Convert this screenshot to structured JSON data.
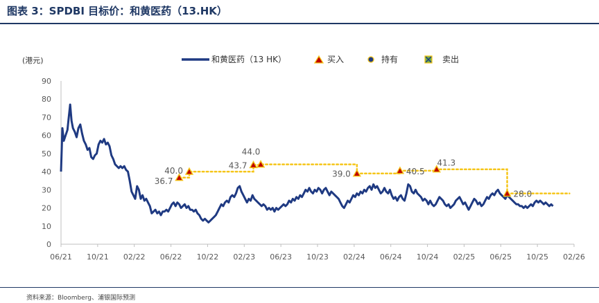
{
  "figure": {
    "title": "图表 3：SPDBI 目标价：和黄医药（13.HK）",
    "source": "资料来源：Bloomberg、浦银国际预测"
  },
  "colors": {
    "price_line": "#1f3a82",
    "target_line": "#f5c518",
    "buy_marker_fill": "#c00000",
    "buy_marker_border": "#f5c518",
    "hold_marker_fill": "#1f3a82",
    "sell_marker_fill": "#70ad47",
    "axis_text": "#595959",
    "title": "#1f3864"
  },
  "chart_data": {
    "type": "line",
    "title": "",
    "unit_label": "(港元)",
    "xlabel": "",
    "ylabel": "(港元)",
    "ylim": [
      0,
      90
    ],
    "yticks": [
      0,
      10,
      20,
      30,
      40,
      50,
      60,
      70,
      80,
      90
    ],
    "xlim": [
      0,
      56
    ],
    "xticks": [
      {
        "m": 0,
        "label": "06/21"
      },
      {
        "m": 4,
        "label": "10/21"
      },
      {
        "m": 8,
        "label": "02/22"
      },
      {
        "m": 12,
        "label": "06/22"
      },
      {
        "m": 16,
        "label": "10/22"
      },
      {
        "m": 20,
        "label": "02/23"
      },
      {
        "m": 24,
        "label": "06/23"
      },
      {
        "m": 28,
        "label": "10/23"
      },
      {
        "m": 32,
        "label": "02/24"
      },
      {
        "m": 36,
        "label": "06/24"
      },
      {
        "m": 40,
        "label": "10/24"
      },
      {
        "m": 44,
        "label": "02/25"
      },
      {
        "m": 48,
        "label": "06/25"
      },
      {
        "m": 52,
        "label": "10/25"
      },
      {
        "m": 56,
        "label": "02/26"
      }
    ],
    "legend": {
      "position": "top",
      "entries": [
        {
          "key": "price",
          "label": "和黄医药（13 HK）"
        },
        {
          "key": "buy",
          "label": "买入"
        },
        {
          "key": "hold",
          "label": "持有"
        },
        {
          "key": "sell",
          "label": "卖出"
        }
      ]
    },
    "price_series": {
      "name": "和黄医药（13 HK）",
      "points": [
        [
          0,
          40
        ],
        [
          0.15,
          64
        ],
        [
          0.3,
          57
        ],
        [
          0.5,
          60
        ],
        [
          0.7,
          63
        ],
        [
          0.85,
          70
        ],
        [
          1.0,
          77
        ],
        [
          1.15,
          68
        ],
        [
          1.3,
          64
        ],
        [
          1.5,
          62
        ],
        [
          1.7,
          59
        ],
        [
          1.9,
          64
        ],
        [
          2.1,
          66
        ],
        [
          2.3,
          61
        ],
        [
          2.5,
          57
        ],
        [
          2.7,
          55
        ],
        [
          2.9,
          52
        ],
        [
          3.1,
          53
        ],
        [
          3.3,
          48
        ],
        [
          3.5,
          47
        ],
        [
          3.7,
          49
        ],
        [
          3.9,
          50
        ],
        [
          4.1,
          55
        ],
        [
          4.3,
          57
        ],
        [
          4.5,
          56
        ],
        [
          4.7,
          58
        ],
        [
          4.9,
          55
        ],
        [
          5.1,
          56
        ],
        [
          5.3,
          54
        ],
        [
          5.5,
          49
        ],
        [
          5.7,
          47
        ],
        [
          5.9,
          44
        ],
        [
          6.1,
          43
        ],
        [
          6.3,
          42
        ],
        [
          6.5,
          43
        ],
        [
          6.7,
          42
        ],
        [
          6.9,
          43
        ],
        [
          7.1,
          41
        ],
        [
          7.3,
          40
        ],
        [
          7.5,
          35
        ],
        [
          7.7,
          29
        ],
        [
          7.9,
          27
        ],
        [
          8.1,
          25
        ],
        [
          8.3,
          32
        ],
        [
          8.5,
          30
        ],
        [
          8.7,
          25
        ],
        [
          8.9,
          27
        ],
        [
          9.1,
          24
        ],
        [
          9.3,
          25
        ],
        [
          9.5,
          23
        ],
        [
          9.7,
          21
        ],
        [
          9.9,
          17
        ],
        [
          10.1,
          18
        ],
        [
          10.3,
          19
        ],
        [
          10.5,
          17
        ],
        [
          10.7,
          18
        ],
        [
          10.9,
          16
        ],
        [
          11.1,
          18
        ],
        [
          11.3,
          18
        ],
        [
          11.5,
          19
        ],
        [
          11.7,
          18
        ],
        [
          11.9,
          20
        ],
        [
          12.1,
          22
        ],
        [
          12.3,
          23
        ],
        [
          12.5,
          21
        ],
        [
          12.7,
          23
        ],
        [
          12.9,
          22
        ],
        [
          13.1,
          20
        ],
        [
          13.3,
          21
        ],
        [
          13.5,
          22
        ],
        [
          13.7,
          20
        ],
        [
          13.9,
          21
        ],
        [
          14.1,
          19
        ],
        [
          14.3,
          19
        ],
        [
          14.5,
          18
        ],
        [
          14.7,
          19
        ],
        [
          14.9,
          17
        ],
        [
          15.1,
          16
        ],
        [
          15.3,
          14
        ],
        [
          15.5,
          13
        ],
        [
          15.7,
          14
        ],
        [
          15.9,
          13
        ],
        [
          16.1,
          12
        ],
        [
          16.3,
          13
        ],
        [
          16.5,
          14
        ],
        [
          16.7,
          15
        ],
        [
          16.9,
          16
        ],
        [
          17.1,
          18
        ],
        [
          17.3,
          20
        ],
        [
          17.5,
          22
        ],
        [
          17.7,
          21
        ],
        [
          17.9,
          23
        ],
        [
          18.1,
          24
        ],
        [
          18.3,
          23
        ],
        [
          18.5,
          26
        ],
        [
          18.7,
          27
        ],
        [
          18.9,
          26
        ],
        [
          19.1,
          28
        ],
        [
          19.3,
          31
        ],
        [
          19.5,
          32
        ],
        [
          19.7,
          29
        ],
        [
          19.9,
          27
        ],
        [
          20.1,
          25
        ],
        [
          20.3,
          23
        ],
        [
          20.5,
          25
        ],
        [
          20.7,
          24
        ],
        [
          20.9,
          27
        ],
        [
          21.1,
          25
        ],
        [
          21.3,
          24
        ],
        [
          21.5,
          23
        ],
        [
          21.7,
          22
        ],
        [
          21.9,
          21
        ],
        [
          22.1,
          22
        ],
        [
          22.3,
          21
        ],
        [
          22.5,
          19
        ],
        [
          22.7,
          20
        ],
        [
          22.9,
          19
        ],
        [
          23.1,
          20
        ],
        [
          23.3,
          18
        ],
        [
          23.5,
          20
        ],
        [
          23.7,
          19
        ],
        [
          23.9,
          20
        ],
        [
          24.1,
          21
        ],
        [
          24.3,
          22
        ],
        [
          24.5,
          21
        ],
        [
          24.7,
          22
        ],
        [
          24.9,
          24
        ],
        [
          25.1,
          23
        ],
        [
          25.3,
          25
        ],
        [
          25.5,
          24
        ],
        [
          25.7,
          26
        ],
        [
          25.9,
          25
        ],
        [
          26.1,
          27
        ],
        [
          26.3,
          26
        ],
        [
          26.5,
          28
        ],
        [
          26.7,
          30
        ],
        [
          26.9,
          29
        ],
        [
          27.1,
          31
        ],
        [
          27.3,
          29
        ],
        [
          27.5,
          28
        ],
        [
          27.7,
          30
        ],
        [
          27.9,
          29
        ],
        [
          28.1,
          31
        ],
        [
          28.3,
          30
        ],
        [
          28.5,
          28
        ],
        [
          28.7,
          30
        ],
        [
          28.9,
          31
        ],
        [
          29.1,
          29
        ],
        [
          29.3,
          27
        ],
        [
          29.5,
          29
        ],
        [
          29.7,
          28
        ],
        [
          29.9,
          27
        ],
        [
          30.1,
          26
        ],
        [
          30.3,
          25
        ],
        [
          30.5,
          23
        ],
        [
          30.7,
          21
        ],
        [
          30.9,
          20
        ],
        [
          31.1,
          22
        ],
        [
          31.3,
          24
        ],
        [
          31.5,
          23
        ],
        [
          31.7,
          25
        ],
        [
          31.9,
          27
        ],
        [
          32.1,
          26
        ],
        [
          32.3,
          28
        ],
        [
          32.5,
          27
        ],
        [
          32.7,
          29
        ],
        [
          32.9,
          28
        ],
        [
          33.1,
          30
        ],
        [
          33.3,
          29
        ],
        [
          33.5,
          31
        ],
        [
          33.7,
          32
        ],
        [
          33.9,
          30
        ],
        [
          34.1,
          33
        ],
        [
          34.3,
          31
        ],
        [
          34.5,
          32
        ],
        [
          34.7,
          30
        ],
        [
          34.9,
          28
        ],
        [
          35.1,
          29
        ],
        [
          35.3,
          31
        ],
        [
          35.5,
          29
        ],
        [
          35.7,
          28
        ],
        [
          35.9,
          30
        ],
        [
          36.1,
          27
        ],
        [
          36.3,
          25
        ],
        [
          36.5,
          26
        ],
        [
          36.7,
          24
        ],
        [
          36.9,
          26
        ],
        [
          37.1,
          27
        ],
        [
          37.3,
          25
        ],
        [
          37.5,
          24
        ],
        [
          37.7,
          28
        ],
        [
          37.9,
          33
        ],
        [
          38.1,
          32
        ],
        [
          38.3,
          29
        ],
        [
          38.5,
          28
        ],
        [
          38.7,
          30
        ],
        [
          38.9,
          28
        ],
        [
          39.1,
          27
        ],
        [
          39.3,
          26
        ],
        [
          39.5,
          24
        ],
        [
          39.7,
          25
        ],
        [
          39.9,
          24
        ],
        [
          40.1,
          22
        ],
        [
          40.3,
          24
        ],
        [
          40.5,
          22
        ],
        [
          40.7,
          21
        ],
        [
          40.9,
          22
        ],
        [
          41.1,
          24
        ],
        [
          41.3,
          26
        ],
        [
          41.5,
          25
        ],
        [
          41.7,
          24
        ],
        [
          41.9,
          22
        ],
        [
          42.1,
          21
        ],
        [
          42.3,
          22
        ],
        [
          42.5,
          20
        ],
        [
          42.7,
          21
        ],
        [
          42.9,
          22
        ],
        [
          43.1,
          24
        ],
        [
          43.3,
          25
        ],
        [
          43.5,
          26
        ],
        [
          43.7,
          24
        ],
        [
          43.9,
          22
        ],
        [
          44.1,
          23
        ],
        [
          44.3,
          21
        ],
        [
          44.5,
          19
        ],
        [
          44.7,
          21
        ],
        [
          44.9,
          23
        ],
        [
          45.1,
          25
        ],
        [
          45.3,
          24
        ],
        [
          45.5,
          22
        ],
        [
          45.7,
          23
        ],
        [
          45.9,
          21
        ],
        [
          46.1,
          22
        ],
        [
          46.3,
          24
        ],
        [
          46.5,
          26
        ],
        [
          46.7,
          25
        ],
        [
          46.9,
          27
        ],
        [
          47.1,
          28
        ],
        [
          47.3,
          27
        ],
        [
          47.5,
          29
        ],
        [
          47.7,
          30
        ],
        [
          47.9,
          28
        ],
        [
          48.1,
          27
        ],
        [
          48.3,
          26
        ],
        [
          48.5,
          25
        ],
        [
          48.7,
          27
        ],
        [
          48.9,
          26
        ],
        [
          49.1,
          25
        ],
        [
          49.3,
          24
        ],
        [
          49.5,
          23
        ],
        [
          49.7,
          22
        ],
        [
          49.9,
          22
        ],
        [
          50.1,
          21
        ],
        [
          50.3,
          21
        ],
        [
          50.5,
          20
        ],
        [
          50.7,
          21
        ],
        [
          50.9,
          20
        ],
        [
          51.1,
          21
        ],
        [
          51.3,
          22
        ],
        [
          51.5,
          21
        ],
        [
          51.7,
          23
        ],
        [
          51.9,
          24
        ],
        [
          52.1,
          23
        ],
        [
          52.3,
          24
        ],
        [
          52.5,
          23
        ],
        [
          52.7,
          22
        ],
        [
          52.9,
          23
        ],
        [
          53.1,
          22
        ],
        [
          53.3,
          21
        ],
        [
          53.5,
          22
        ],
        [
          53.7,
          21
        ]
      ]
    },
    "target_series": {
      "name": "目标价",
      "steps": [
        [
          12.9,
          36.7
        ],
        [
          14.0,
          40.0
        ],
        [
          21.0,
          43.7
        ],
        [
          21.8,
          44.0
        ],
        [
          32.3,
          39.0
        ],
        [
          37.0,
          40.5
        ],
        [
          41.0,
          41.3
        ],
        [
          48.7,
          28.0
        ],
        [
          55.5,
          28.0
        ]
      ]
    },
    "ratings": [
      {
        "m": 12.9,
        "target": 36.7,
        "label": "36.7",
        "rating": "buy",
        "label_side": "left",
        "label_dy": 0
      },
      {
        "m": 14.0,
        "target": 40.0,
        "label": "40.0",
        "rating": "buy",
        "label_side": "left",
        "label_dy": 0
      },
      {
        "m": 21.0,
        "target": 43.7,
        "label": "43.7",
        "rating": "buy",
        "label_side": "left",
        "label_dy": 0
      },
      {
        "m": 21.8,
        "target": 44.0,
        "label": "44.0",
        "rating": "buy",
        "label_side": "above",
        "label_dy": 0
      },
      {
        "m": 32.3,
        "target": 39.0,
        "label": "39.0",
        "rating": "buy",
        "label_side": "left",
        "label_dy": 0
      },
      {
        "m": 37.0,
        "target": 40.5,
        "label": "40.5",
        "rating": "buy",
        "label_side": "right",
        "label_dy": 0
      },
      {
        "m": 41.0,
        "target": 41.3,
        "label": "41.3",
        "rating": "buy",
        "label_side": "above",
        "label_dy": 0
      },
      {
        "m": 48.7,
        "target": 28.0,
        "label": "28.0",
        "rating": "buy",
        "label_side": "right",
        "label_dy": 0
      }
    ]
  }
}
